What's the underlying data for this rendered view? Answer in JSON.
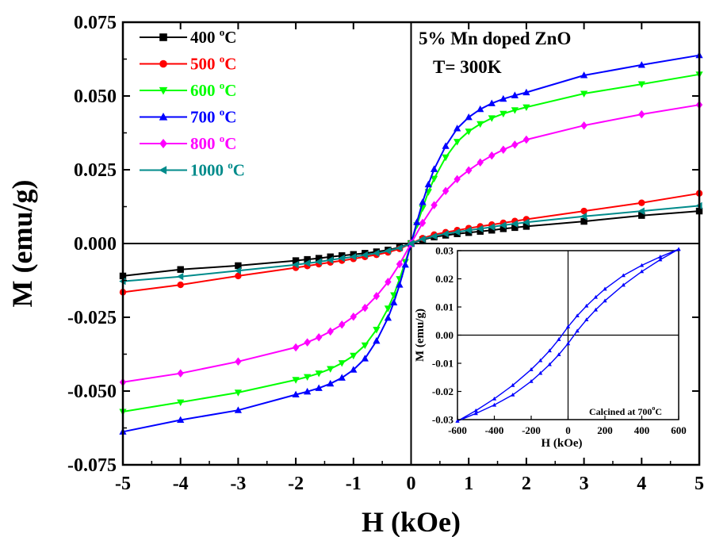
{
  "chart_data": [
    {
      "type": "line",
      "xlabel": "H (kOe)",
      "ylabel": "M (emu/g)",
      "xlim": [
        -5,
        5
      ],
      "ylim": [
        -0.075,
        0.075
      ],
      "xticks": [
        "-5",
        "-4",
        "-3",
        "-2",
        "-1",
        "0",
        "1",
        "2",
        "3",
        "4",
        "5"
      ],
      "yticks": [
        "-0.075",
        "-0.050",
        "-0.025",
        "0.000",
        "0.025",
        "0.050",
        "0.075"
      ],
      "annotations": [
        "5% Mn doped ZnO",
        "T= 300K"
      ],
      "legend_position": "top-left",
      "grid": false,
      "series": [
        {
          "name": "400 °C",
          "label_main": "400 ",
          "label_sup": "o",
          "label_unit": "C",
          "color": "#000000",
          "marker": "square",
          "x": [
            -5,
            -4,
            -3,
            -2,
            -1.8,
            -1.6,
            -1.4,
            -1.2,
            -1,
            -0.8,
            -0.6,
            -0.4,
            -0.2,
            0,
            0.2,
            0.4,
            0.6,
            0.8,
            1,
            1.2,
            1.4,
            1.6,
            1.8,
            2,
            3,
            4,
            5
          ],
          "y": [
            -0.011,
            -0.0088,
            -0.0075,
            -0.0058,
            -0.0054,
            -0.005,
            -0.0045,
            -0.0041,
            -0.0037,
            -0.0033,
            -0.0028,
            -0.0022,
            -0.0013,
            0,
            0.0013,
            0.0022,
            0.0028,
            0.0033,
            0.0037,
            0.0041,
            0.0045,
            0.005,
            0.0054,
            0.0058,
            0.0075,
            0.0095,
            0.011
          ]
        },
        {
          "name": "500 °C",
          "label_main": "500 ",
          "label_sup": "o",
          "label_unit": "C",
          "color": "#ff0000",
          "marker": "circle",
          "x": [
            -5,
            -4,
            -3,
            -2,
            -1.8,
            -1.6,
            -1.4,
            -1.2,
            -1,
            -0.8,
            -0.6,
            -0.4,
            -0.2,
            0,
            0.2,
            0.4,
            0.6,
            0.8,
            1,
            1.2,
            1.4,
            1.6,
            1.8,
            2,
            3,
            4,
            5
          ],
          "y": [
            -0.0165,
            -0.014,
            -0.011,
            -0.0082,
            -0.0076,
            -0.007,
            -0.0064,
            -0.0058,
            -0.0052,
            -0.0045,
            -0.0038,
            -0.003,
            -0.0018,
            0,
            0.0018,
            0.003,
            0.0038,
            0.0045,
            0.0052,
            0.0058,
            0.0064,
            0.007,
            0.0076,
            0.0082,
            0.011,
            0.0138,
            0.017
          ]
        },
        {
          "name": "600 °C",
          "label_main": "600 ",
          "label_sup": "o",
          "label_unit": "C",
          "color": "#00ff00",
          "marker": "triangle-down",
          "x": [
            -5,
            -4,
            -3,
            -2,
            -1.8,
            -1.6,
            -1.4,
            -1.2,
            -1,
            -0.8,
            -0.6,
            -0.4,
            -0.3,
            -0.2,
            -0.1,
            0,
            0.1,
            0.2,
            0.3,
            0.4,
            0.6,
            0.8,
            1,
            1.2,
            1.4,
            1.6,
            1.8,
            2,
            3,
            4,
            5
          ],
          "y": [
            -0.057,
            -0.0538,
            -0.0505,
            -0.0462,
            -0.0452,
            -0.044,
            -0.0425,
            -0.0405,
            -0.038,
            -0.0345,
            -0.0292,
            -0.022,
            -0.0175,
            -0.012,
            -0.0062,
            0,
            0.0062,
            0.012,
            0.0175,
            0.022,
            0.0292,
            0.0345,
            0.038,
            0.0405,
            0.0425,
            0.044,
            0.0452,
            0.0462,
            0.0508,
            0.054,
            0.0573
          ]
        },
        {
          "name": "700 °C",
          "label_main": "700 ",
          "label_sup": "o",
          "label_unit": "C",
          "color": "#0000ff",
          "marker": "triangle-up",
          "x": [
            -5,
            -4,
            -3,
            -2,
            -1.8,
            -1.6,
            -1.4,
            -1.2,
            -1,
            -0.8,
            -0.6,
            -0.4,
            -0.3,
            -0.2,
            -0.1,
            0,
            0.1,
            0.2,
            0.3,
            0.4,
            0.6,
            0.8,
            1,
            1.2,
            1.4,
            1.6,
            1.8,
            2,
            3,
            4,
            5
          ],
          "y": [
            -0.0638,
            -0.0598,
            -0.0565,
            -0.0512,
            -0.0502,
            -0.049,
            -0.0475,
            -0.0455,
            -0.0428,
            -0.039,
            -0.033,
            -0.0252,
            -0.02,
            -0.014,
            -0.0072,
            0,
            0.0072,
            0.014,
            0.02,
            0.0252,
            0.033,
            0.039,
            0.0428,
            0.0455,
            0.0475,
            0.049,
            0.0502,
            0.0512,
            0.057,
            0.0605,
            0.0638
          ]
        },
        {
          "name": "800 °C",
          "label_main": "800 ",
          "label_sup": "o",
          "label_unit": "C",
          "color": "#ff00ff",
          "marker": "diamond",
          "x": [
            -5,
            -4,
            -3,
            -2,
            -1.8,
            -1.6,
            -1.4,
            -1.2,
            -1,
            -0.8,
            -0.6,
            -0.4,
            -0.2,
            0,
            0.2,
            0.4,
            0.6,
            0.8,
            1,
            1.2,
            1.4,
            1.6,
            1.8,
            2,
            3,
            4,
            5
          ],
          "y": [
            -0.047,
            -0.044,
            -0.04,
            -0.0352,
            -0.0335,
            -0.0318,
            -0.0298,
            -0.0275,
            -0.0248,
            -0.0218,
            -0.0178,
            -0.013,
            -0.007,
            0,
            0.007,
            0.013,
            0.0178,
            0.0218,
            0.0248,
            0.0275,
            0.0298,
            0.0318,
            0.0335,
            0.0352,
            0.04,
            0.0438,
            0.047
          ]
        },
        {
          "name": "1000 °C",
          "label_main": "1000 ",
          "label_sup": "o",
          "label_unit": "C",
          "color": "#008b8b",
          "marker": "triangle-left",
          "x": [
            -5,
            -4,
            -3,
            -2,
            -1.8,
            -1.6,
            -1.4,
            -1.2,
            -1,
            -0.8,
            -0.6,
            -0.4,
            -0.2,
            0,
            0.2,
            0.4,
            0.6,
            0.8,
            1,
            1.2,
            1.4,
            1.6,
            1.8,
            2,
            3,
            4,
            5
          ],
          "y": [
            -0.0128,
            -0.0112,
            -0.0092,
            -0.0072,
            -0.0067,
            -0.0062,
            -0.0056,
            -0.005,
            -0.0045,
            -0.0039,
            -0.0033,
            -0.0025,
            -0.0015,
            0,
            0.0015,
            0.0025,
            0.0033,
            0.0039,
            0.0045,
            0.005,
            0.0056,
            0.0062,
            0.0067,
            0.0072,
            0.0092,
            0.011,
            0.0128
          ]
        }
      ]
    },
    {
      "type": "line",
      "xlabel": "H (kOe)",
      "ylabel": "M (emu/g)",
      "xlim": [
        -600,
        600
      ],
      "ylim": [
        -0.03,
        0.03
      ],
      "xticks": [
        "-600",
        "-400",
        "-200",
        "0",
        "200",
        "400",
        "600"
      ],
      "yticks": [
        "-0.03",
        "-0.02",
        "-0.01",
        "0.00",
        "0.01",
        "0.02",
        "0.03"
      ],
      "annotation_main": "Calcined at 700",
      "annotation_sup": "o",
      "annotation_unit": "C",
      "grid": false,
      "series": [
        {
          "color": "#0000ff",
          "marker": "triangle-up",
          "x": [
            600,
            500,
            400,
            300,
            200,
            150,
            100,
            50,
            0,
            -50,
            -100,
            -150,
            -200,
            -300,
            -400,
            -500,
            -600,
            -500,
            -400,
            -300,
            -200,
            -150,
            -100,
            -50,
            0,
            50,
            100,
            150,
            200,
            300,
            400,
            500,
            600
          ],
          "y": [
            0.0305,
            0.0278,
            0.0248,
            0.0212,
            0.0164,
            0.0135,
            0.0104,
            0.0069,
            0.003,
            -0.0015,
            -0.0055,
            -0.009,
            -0.0122,
            -0.0178,
            -0.0226,
            -0.0268,
            -0.0305,
            -0.0278,
            -0.0248,
            -0.0212,
            -0.0164,
            -0.0135,
            -0.0104,
            -0.0069,
            -0.003,
            0.0015,
            0.0055,
            0.009,
            0.0122,
            0.0178,
            0.0226,
            0.0268,
            0.0305
          ]
        }
      ]
    }
  ]
}
